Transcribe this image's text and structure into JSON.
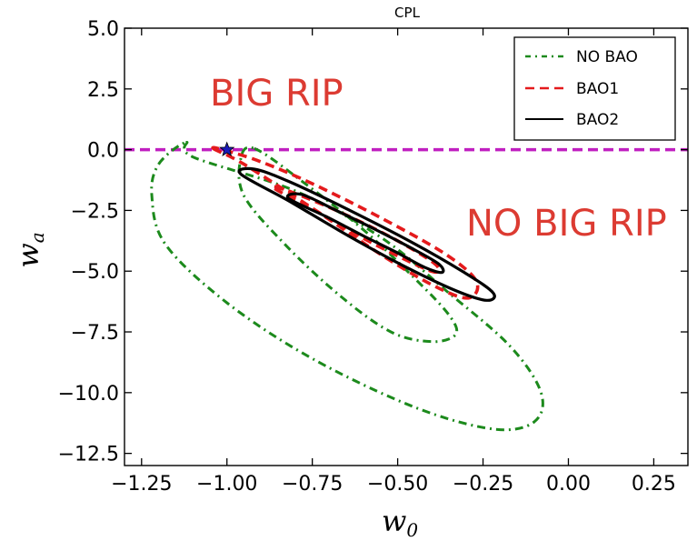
{
  "chart_data": {
    "type": "line",
    "title": "CPL",
    "xlabel": "w",
    "xlabel_sub": "0",
    "ylabel": "w",
    "ylabel_sub": "a",
    "xlim": [
      -1.3,
      0.35
    ],
    "ylim": [
      -13.0,
      5.0
    ],
    "grid": false,
    "legend_position": "top-right",
    "x_ticks": [
      {
        "value": -1.25,
        "label": "−1.25"
      },
      {
        "value": -1.0,
        "label": "−1.00"
      },
      {
        "value": -0.75,
        "label": "−0.75"
      },
      {
        "value": -0.5,
        "label": "−0.50"
      },
      {
        "value": -0.25,
        "label": "−0.25"
      },
      {
        "value": 0.0,
        "label": "0.00"
      },
      {
        "value": 0.25,
        "label": "0.25"
      }
    ],
    "y_ticks": [
      {
        "value": 5.0,
        "label": "5.0"
      },
      {
        "value": 2.5,
        "label": "2.5"
      },
      {
        "value": 0.0,
        "label": "0.0"
      },
      {
        "value": -2.5,
        "label": "−2.5"
      },
      {
        "value": -5.0,
        "label": "−5.0"
      },
      {
        "value": -7.5,
        "label": "−7.5"
      },
      {
        "value": -10.0,
        "label": "−10.0"
      },
      {
        "value": -12.5,
        "label": "−12.5"
      }
    ],
    "annotations": [
      {
        "text": "BIG RIP",
        "x": -1.0,
        "y": 2.7
      },
      {
        "text": "NO BIG RIP",
        "x": -0.28,
        "y": -3.2
      }
    ],
    "reference_line": {
      "name": "wa = 0",
      "y": 0.0,
      "color": "#c01fc0",
      "style": "dashed"
    },
    "fiducial_point": {
      "name": "LCDM",
      "x": -1.0,
      "y": 0.0,
      "marker": "star",
      "color": "#1a1ab8"
    },
    "series": [
      {
        "name": "NO BAO",
        "color": "#1c8a1c",
        "style": "dashdot",
        "contours": [
          {
            "level": "1-sigma",
            "points": [
              [
                -0.92,
                0.05
              ],
              [
                -0.78,
                -1.3
              ],
              [
                -0.6,
                -3.3
              ],
              [
                -0.45,
                -5.3
              ],
              [
                -0.35,
                -6.8
              ],
              [
                -0.33,
                -7.6
              ],
              [
                -0.4,
                -7.9
              ],
              [
                -0.52,
                -7.5
              ],
              [
                -0.67,
                -6.0
              ],
              [
                -0.83,
                -3.9
              ],
              [
                -0.95,
                -1.9
              ],
              [
                -0.96,
                -0.4
              ],
              [
                -0.92,
                0.05
              ]
            ]
          },
          {
            "level": "2-sigma",
            "points": [
              [
                -1.12,
                0.3
              ],
              [
                -1.1,
                -0.3
              ],
              [
                -0.8,
                -1.7
              ],
              [
                -0.55,
                -3.6
              ],
              [
                -0.35,
                -5.9
              ],
              [
                -0.17,
                -8.1
              ],
              [
                -0.08,
                -10.0
              ],
              [
                -0.1,
                -11.2
              ],
              [
                -0.22,
                -11.5
              ],
              [
                -0.45,
                -10.6
              ],
              [
                -0.75,
                -8.6
              ],
              [
                -1.0,
                -6.3
              ],
              [
                -1.18,
                -3.9
              ],
              [
                -1.22,
                -1.9
              ],
              [
                -1.2,
                -0.6
              ],
              [
                -1.12,
                0.3
              ]
            ]
          }
        ]
      },
      {
        "name": "BAO1",
        "color": "#e41a1c",
        "style": "dashed",
        "contours": [
          {
            "level": "1-sigma",
            "points": [
              [
                -0.86,
                -1.6
              ],
              [
                -0.73,
                -2.6
              ],
              [
                -0.58,
                -3.8
              ],
              [
                -0.42,
                -4.9
              ],
              [
                -0.38,
                -5.0
              ],
              [
                -0.4,
                -4.6
              ],
              [
                -0.52,
                -3.6
              ],
              [
                -0.68,
                -2.5
              ],
              [
                -0.82,
                -1.7
              ],
              [
                -0.86,
                -1.6
              ]
            ]
          },
          {
            "level": "2-sigma",
            "points": [
              [
                -1.04,
                0.05
              ],
              [
                -0.95,
                -0.6
              ],
              [
                -0.74,
                -2.5
              ],
              [
                -0.54,
                -4.4
              ],
              [
                -0.38,
                -5.7
              ],
              [
                -0.29,
                -6.1
              ],
              [
                -0.27,
                -5.4
              ],
              [
                -0.36,
                -4.3
              ],
              [
                -0.55,
                -2.8
              ],
              [
                -0.75,
                -1.4
              ],
              [
                -0.9,
                -0.5
              ],
              [
                -1.0,
                -0.05
              ],
              [
                -1.04,
                0.05
              ]
            ]
          }
        ]
      },
      {
        "name": "BAO2",
        "color": "#000000",
        "style": "solid",
        "contours": [
          {
            "level": "1-sigma",
            "points": [
              [
                -0.82,
                -2.0
              ],
              [
                -0.71,
                -2.75
              ],
              [
                -0.6,
                -3.55
              ],
              [
                -0.5,
                -4.25
              ],
              [
                -0.42,
                -4.85
              ],
              [
                -0.37,
                -5.05
              ],
              [
                -0.38,
                -4.7
              ],
              [
                -0.46,
                -4.05
              ],
              [
                -0.57,
                -3.25
              ],
              [
                -0.68,
                -2.5
              ],
              [
                -0.78,
                -1.85
              ],
              [
                -0.82,
                -2.0
              ]
            ]
          },
          {
            "level": "2-sigma",
            "points": [
              [
                -0.96,
                -1.0
              ],
              [
                -0.82,
                -2.1
              ],
              [
                -0.65,
                -3.5
              ],
              [
                -0.48,
                -4.8
              ],
              [
                -0.33,
                -5.8
              ],
              [
                -0.24,
                -6.2
              ],
              [
                -0.22,
                -5.9
              ],
              [
                -0.3,
                -5.1
              ],
              [
                -0.46,
                -3.8
              ],
              [
                -0.64,
                -2.5
              ],
              [
                -0.82,
                -1.3
              ],
              [
                -0.92,
                -0.8
              ],
              [
                -0.96,
                -1.0
              ]
            ]
          }
        ]
      }
    ]
  }
}
